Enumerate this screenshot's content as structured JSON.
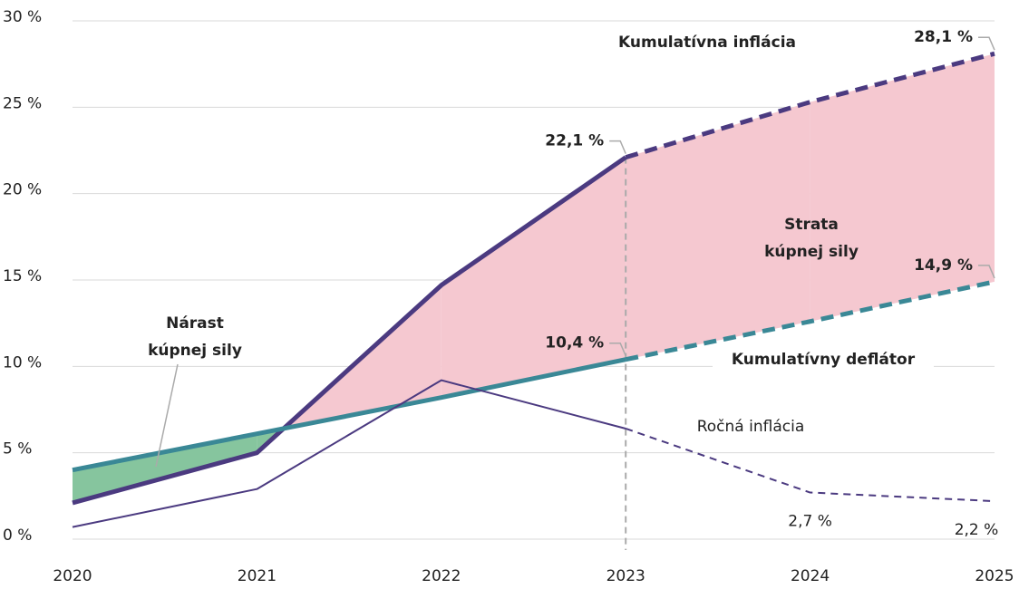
{
  "chart_data": {
    "type": "line",
    "x": [
      2020,
      2021,
      2022,
      2023,
      2024,
      2025
    ],
    "xlim": [
      2020,
      2025
    ],
    "xticks": [
      2020,
      2021,
      2022,
      2023,
      2024,
      2025
    ],
    "ylim": [
      0,
      30
    ],
    "yticks": [
      {
        "value": 0,
        "label": "0 %"
      },
      {
        "value": 5,
        "label": "5 %"
      },
      {
        "value": 10,
        "label": "10 %"
      },
      {
        "value": 15,
        "label": "15 %"
      },
      {
        "value": 20,
        "label": "20 %"
      },
      {
        "value": 25,
        "label": "25 %"
      },
      {
        "value": 30,
        "label": "30 %"
      }
    ],
    "grid": true,
    "forecast_from": 2023,
    "series": [
      {
        "name": "Kumulatívna inflácia",
        "color": "#4b3a80",
        "values": [
          2.1,
          5.0,
          14.7,
          22.1,
          25.3,
          28.1
        ],
        "value_labels": [
          null,
          null,
          null,
          "22,1 %",
          null,
          "28,1 %"
        ]
      },
      {
        "name": "Kumulatívny deflátor",
        "color": "#3a8896",
        "values": [
          4.0,
          6.1,
          8.2,
          10.4,
          12.6,
          14.9
        ],
        "value_labels": [
          null,
          null,
          null,
          "10,4 %",
          null,
          "14,9 %"
        ]
      },
      {
        "name": "Ročná inflácia",
        "color": "#4b3a80",
        "values": [
          0.7,
          2.9,
          9.2,
          6.4,
          2.7,
          2.2
        ],
        "value_labels": [
          null,
          null,
          null,
          null,
          "2,7 %",
          "2,2 %"
        ]
      }
    ],
    "areas": {
      "gain_color": "#86c59e",
      "loss_color": "#f5c8d0"
    },
    "annotations": [
      {
        "lines": [
          "Nárast",
          "kúpnej sily"
        ],
        "color": "#3aa35f"
      },
      {
        "lines": [
          "Strata",
          "kúpnej sily"
        ],
        "color": "#e8202a"
      }
    ]
  }
}
